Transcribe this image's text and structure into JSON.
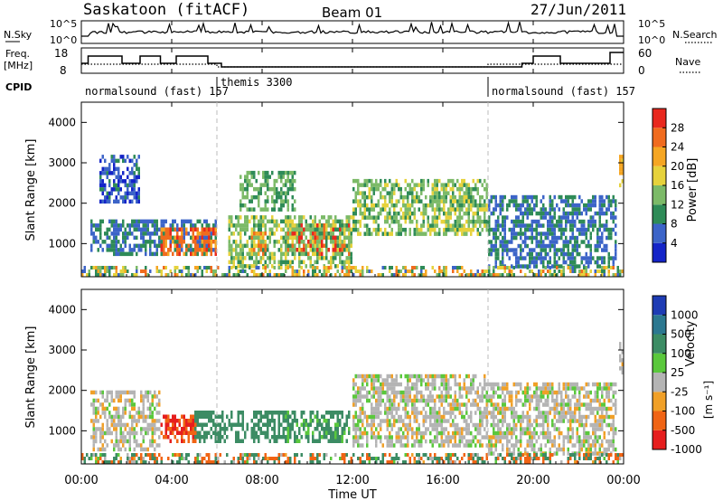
{
  "header": {
    "station": "Saskatoon (fitACF)",
    "beam": "Beam 01",
    "date": "27/Jun/2011"
  },
  "nsky_panel": {
    "left_label": "N.Sky",
    "right_label": "N.Search",
    "left_ticks": [
      "10^5",
      "10^0"
    ],
    "right_ticks": [
      "10^5",
      "10^0"
    ]
  },
  "freq_panel": {
    "left_label_line1": "Freq.",
    "left_label_line2": "[MHz]",
    "right_label": "Nave",
    "left_ticks": [
      "18",
      "8"
    ],
    "right_ticks": [
      "60",
      "0"
    ]
  },
  "cpid": {
    "label": "CPID",
    "segments": [
      {
        "label": "normalsound (fast) 157",
        "start_h": 0,
        "end_h": 6
      },
      {
        "label": "themis 3300",
        "start_h": 6,
        "end_h": 18
      },
      {
        "label": "normalsound (fast) 157",
        "start_h": 18,
        "end_h": 24
      }
    ]
  },
  "power_panel": {
    "ylabel": "Slant Range [km]",
    "yticks": [
      "4000",
      "3000",
      "2000",
      "1000"
    ],
    "colorbar_label": "Power [dB]",
    "colorbar_ticks": [
      "28",
      "24",
      "20",
      "16",
      "12",
      "8",
      "4"
    ],
    "colors": [
      "#1424c8",
      "#3c64c8",
      "#2e8b57",
      "#7cba68",
      "#e6d23c",
      "#f5a623",
      "#f06b1e",
      "#e8281e"
    ]
  },
  "velocity_panel": {
    "ylabel": "Slant Range [km]",
    "yticks": [
      "4000",
      "3000",
      "2000",
      "1000"
    ],
    "colorbar_label": "Velocity",
    "colorbar_unit": "[m s⁻¹]",
    "colorbar_ticks": [
      "1000",
      "500",
      "100",
      "25",
      "-25",
      "-100",
      "-500",
      "-1000"
    ],
    "colors": [
      "#1e3cb4",
      "#2c7890",
      "#3c8c64",
      "#5ac83c",
      "#b4b4b4",
      "#f0a028",
      "#f06414",
      "#e61e1e"
    ]
  },
  "x_axis": {
    "label": "Time UT",
    "ticks": [
      "00:00",
      "04:00",
      "08:00",
      "12:00",
      "16:00",
      "20:00",
      "00:00"
    ]
  },
  "chart_data": {
    "type": "heatmap",
    "title": "Saskatoon (fitACF) Beam 01 27/Jun/2011",
    "xlabel": "Time UT",
    "ylabel": "Slant Range [km]",
    "xlim": [
      0,
      24
    ],
    "ylim": [
      180,
      4500
    ],
    "x_ticks": [
      "00:00",
      "04:00",
      "08:00",
      "12:00",
      "16:00",
      "20:00",
      "00:00"
    ],
    "y_ticks": [
      1000,
      2000,
      3000,
      4000
    ],
    "grid": false,
    "power_scatter_regions": [
      {
        "t_start": 0.4,
        "t_end": 6.0,
        "r_min": 700,
        "r_max": 1600,
        "power_db": 8
      },
      {
        "t_start": 0.8,
        "t_end": 2.6,
        "r_min": 2000,
        "r_max": 3200,
        "power_db": 6
      },
      {
        "t_start": 3.5,
        "t_end": 6.0,
        "r_min": 700,
        "r_max": 1400,
        "power_db": 26
      },
      {
        "t_start": 7.5,
        "t_end": 8.2,
        "r_min": 700,
        "r_max": 1300,
        "power_db": 24
      },
      {
        "t_start": 9.0,
        "t_end": 11.9,
        "r_min": 700,
        "r_max": 1500,
        "power_db": 28
      },
      {
        "t_start": 6.5,
        "t_end": 12.0,
        "r_min": 400,
        "r_max": 1700,
        "power_db": 14
      },
      {
        "t_start": 7.0,
        "t_end": 9.5,
        "r_min": 1800,
        "r_max": 2800,
        "power_db": 12
      },
      {
        "t_start": 12.0,
        "t_end": 18.0,
        "r_min": 1200,
        "r_max": 2600,
        "power_db": 14
      },
      {
        "t_start": 18.0,
        "t_end": 23.7,
        "r_min": 400,
        "r_max": 2200,
        "power_db": 8
      },
      {
        "t_start": 23.8,
        "t_end": 24.0,
        "r_min": 2400,
        "r_max": 3200,
        "power_db": 20
      }
    ],
    "velocity_scatter_regions": [
      {
        "t_start": 0.4,
        "t_end": 3.5,
        "r_min": 500,
        "r_max": 2000,
        "velocity_ms": 0
      },
      {
        "t_start": 3.5,
        "t_end": 5.2,
        "r_min": 700,
        "r_max": 1400,
        "velocity_ms": -300
      },
      {
        "t_start": 5.0,
        "t_end": 7.0,
        "r_min": 700,
        "r_max": 1500,
        "velocity_ms": 150
      },
      {
        "t_start": 7.0,
        "t_end": 9.0,
        "r_min": 700,
        "r_max": 1500,
        "velocity_ms": 200
      },
      {
        "t_start": 9.0,
        "t_end": 11.9,
        "r_min": 700,
        "r_max": 1500,
        "velocity_ms": 80
      },
      {
        "t_start": 12.0,
        "t_end": 18.0,
        "r_min": 600,
        "r_max": 2400,
        "velocity_ms": 0
      },
      {
        "t_start": 18.0,
        "t_end": 23.7,
        "r_min": 400,
        "r_max": 2200,
        "velocity_ms": 0
      },
      {
        "t_start": 23.8,
        "t_end": 24.0,
        "r_min": 2400,
        "r_max": 3300,
        "velocity_ms": 0
      }
    ]
  }
}
